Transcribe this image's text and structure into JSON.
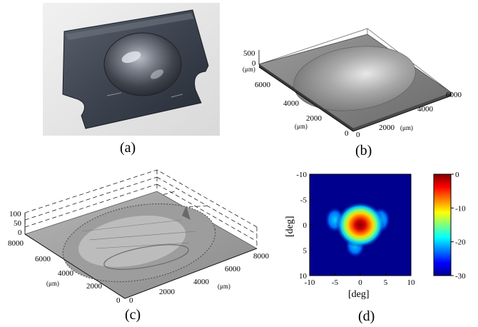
{
  "panels": {
    "a": {
      "caption": "(a)"
    },
    "b": {
      "caption": "(b)",
      "z_ticks": [
        "500",
        "0"
      ],
      "z_unit": "(μm)",
      "y_ticks": [
        "6000",
        "4000",
        "2000",
        "0"
      ],
      "y_unit": "(μm)",
      "x_ticks": [
        "0",
        "2000",
        "4000",
        "6000"
      ],
      "x_unit": "(μm)"
    },
    "c": {
      "caption": "(c)",
      "z_ticks": [
        "100",
        "50",
        "0"
      ],
      "y_ticks": [
        "8000",
        "6000",
        "4000",
        "2000",
        "0"
      ],
      "y_unit": "(μm)",
      "x_ticks": [
        "0",
        "2000",
        "4000",
        "6000",
        "8000"
      ],
      "x_unit": "(μm)"
    },
    "d": {
      "caption": "(d)",
      "xlabel": "[deg]",
      "ylabel": "[deg]",
      "x_ticks": [
        "-10",
        "-5",
        "0",
        "5",
        "10"
      ],
      "y_ticks": [
        "-10",
        "-5",
        "0",
        "5",
        "10"
      ],
      "colorbar_ticks": [
        "0",
        "-10",
        "-20",
        "-30"
      ]
    }
  },
  "chart_data": {
    "type": "heatmap",
    "xlabel": "[deg]",
    "ylabel": "[deg]",
    "xlim": [
      -10,
      10
    ],
    "ylim": [
      -10,
      10
    ],
    "y_inverted": true,
    "colorbar_range": [
      -30,
      0
    ],
    "colormap": "jet",
    "peak": {
      "x": 0,
      "y": 0,
      "value": 0
    },
    "side_lobes": [
      {
        "x": -5,
        "y": -1,
        "value": -19
      },
      {
        "x": 4,
        "y": -1,
        "value": -21
      },
      {
        "x": -1,
        "y": 4,
        "value": -22
      }
    ]
  }
}
